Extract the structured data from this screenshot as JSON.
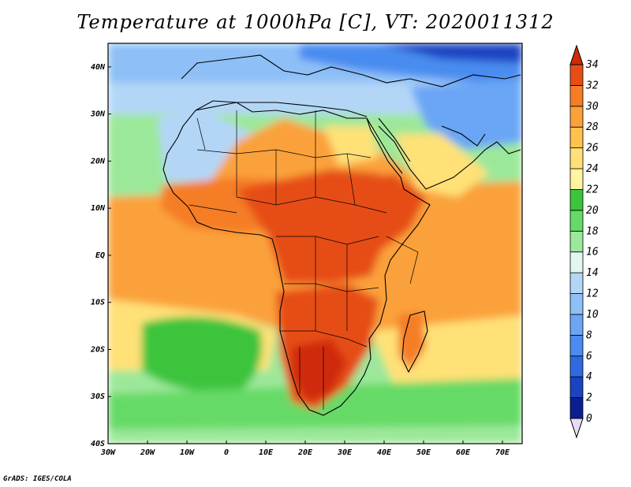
{
  "title": "Temperature at 1000hPa [C], VT: 2020011312",
  "credit": "GrADS: IGES/COLA",
  "map": {
    "projection": "lat-lon",
    "lon_range": [
      -30,
      75
    ],
    "lat_range": [
      -40,
      45
    ],
    "lon_ticks": [
      {
        "value": -30,
        "label": "30W"
      },
      {
        "value": -20,
        "label": "20W"
      },
      {
        "value": -10,
        "label": "10W"
      },
      {
        "value": 0,
        "label": "0"
      },
      {
        "value": 10,
        "label": "10E"
      },
      {
        "value": 20,
        "label": "20E"
      },
      {
        "value": 30,
        "label": "30E"
      },
      {
        "value": 40,
        "label": "40E"
      },
      {
        "value": 50,
        "label": "50E"
      },
      {
        "value": 60,
        "label": "60E"
      },
      {
        "value": 70,
        "label": "70E"
      }
    ],
    "lat_ticks": [
      {
        "value": 40,
        "label": "40N"
      },
      {
        "value": 30,
        "label": "30N"
      },
      {
        "value": 20,
        "label": "20N"
      },
      {
        "value": 10,
        "label": "10N"
      },
      {
        "value": 0,
        "label": "EQ"
      },
      {
        "value": -10,
        "label": "10S"
      },
      {
        "value": -20,
        "label": "20S"
      },
      {
        "value": -30,
        "label": "30S"
      },
      {
        "value": -40,
        "label": "40S"
      }
    ]
  },
  "colorbar": {
    "orientation": "vertical",
    "min": 0,
    "max": 34,
    "interval": 2,
    "labels": [
      "0",
      "2",
      "4",
      "6",
      "8",
      "10",
      "12",
      "14",
      "16",
      "18",
      "20",
      "22",
      "24",
      "26",
      "28",
      "30",
      "32",
      "34"
    ],
    "colors": [
      "#e6dcf7",
      "#0a1f8f",
      "#1a44c2",
      "#2e6ae0",
      "#4a8cf0",
      "#6ba6f5",
      "#8ec0f7",
      "#b3d6f7",
      "#e2f6f2",
      "#9ce89a",
      "#66da66",
      "#3dc43d",
      "#fff4a0",
      "#ffe177",
      "#ffc24d",
      "#fba13a",
      "#f57d25",
      "#e64e14",
      "#cf2a0a"
    ]
  },
  "field_regions": [
    {
      "name": "ocean-south-temperate",
      "temp_class": "16-20"
    },
    {
      "name": "ocean-tropical",
      "temp_class": "26-28"
    },
    {
      "name": "sahara-warm",
      "temp_class": "28-32"
    },
    {
      "name": "central-africa-hot",
      "temp_class": "30-34"
    },
    {
      "name": "southern-africa-hot",
      "temp_class": "30-34"
    },
    {
      "name": "europe-cold",
      "temp_class": "0-12"
    },
    {
      "name": "north-africa-mild",
      "temp_class": "14-20"
    }
  ]
}
